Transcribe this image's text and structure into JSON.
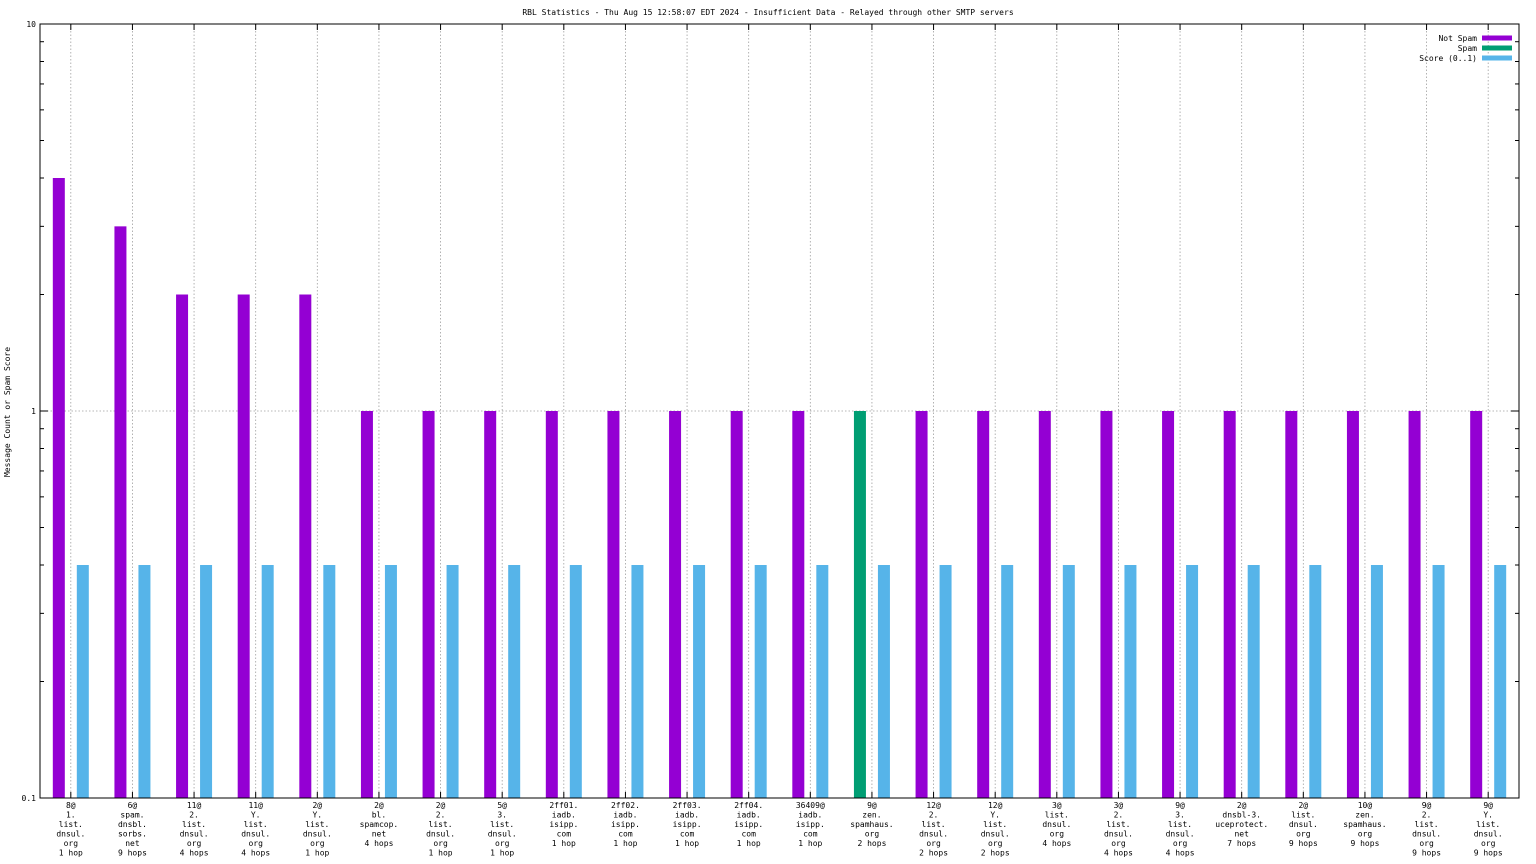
{
  "chart_data": {
    "type": "bar",
    "title": "RBL Statistics - Thu Aug 15 12:58:07 EDT 2024 - Insufficient Data - Relayed through other SMTP servers",
    "ylabel": "Message Count or Spam Score",
    "xlabel": "",
    "yscale": "log",
    "ylim": [
      0.1,
      10
    ],
    "yticks": [
      "0.1",
      "1",
      "10"
    ],
    "legend_position": "top-right",
    "grid": true,
    "colors": {
      "not_spam": "#9400d3",
      "spam": "#009e73",
      "score": "#56b4e9"
    },
    "series": [
      {
        "name": "Not Spam",
        "color": "#9400d3",
        "values": [
          4,
          3,
          2,
          2,
          2,
          1,
          1,
          1,
          1,
          1,
          1,
          1,
          1,
          null,
          1,
          1,
          1,
          1,
          1,
          1,
          1,
          1,
          1,
          1
        ]
      },
      {
        "name": "Spam",
        "color": "#009e73",
        "values": [
          null,
          null,
          null,
          null,
          null,
          null,
          null,
          null,
          null,
          null,
          null,
          null,
          null,
          1,
          null,
          null,
          null,
          null,
          null,
          null,
          null,
          null,
          null,
          null
        ]
      },
      {
        "name": "Score (0..1)",
        "color": "#56b4e9",
        "values": [
          0.4,
          0.4,
          0.4,
          0.4,
          0.4,
          0.4,
          0.4,
          0.4,
          0.4,
          0.4,
          0.4,
          0.4,
          0.4,
          0.4,
          0.4,
          0.4,
          0.4,
          0.4,
          0.4,
          0.4,
          0.4,
          0.4,
          0.4,
          0.4
        ]
      }
    ],
    "categories": [
      [
        "8@",
        "1.",
        "list.",
        "dnsul.",
        "org",
        "1 hop"
      ],
      [
        "6@",
        "spam.",
        "dnsbl.",
        "sorbs.",
        "net",
        "9 hops"
      ],
      [
        "11@",
        "2.",
        "list.",
        "dnsul.",
        "org",
        "4 hops"
      ],
      [
        "11@",
        "Y.",
        "list.",
        "dnsul.",
        "org",
        "4 hops"
      ],
      [
        "2@",
        "Y.",
        "list.",
        "dnsul.",
        "org",
        "1 hop"
      ],
      [
        "2@",
        "bl.",
        "spamcop.",
        "net",
        "4 hops"
      ],
      [
        "2@",
        "2.",
        "list.",
        "dnsul.",
        "org",
        "1 hop"
      ],
      [
        "5@",
        "3.",
        "list.",
        "dnsul.",
        "org",
        "1 hop"
      ],
      [
        "2ff01.",
        "iadb.",
        "isipp.",
        "com",
        "1 hop"
      ],
      [
        "2ff02.",
        "iadb.",
        "isipp.",
        "com",
        "1 hop"
      ],
      [
        "2ff03.",
        "iadb.",
        "isipp.",
        "com",
        "1 hop"
      ],
      [
        "2ff04.",
        "iadb.",
        "isipp.",
        "com",
        "1 hop"
      ],
      [
        "36409@",
        "iadb.",
        "isipp.",
        "com",
        "1 hop"
      ],
      [
        "9@",
        "zen.",
        "spamhaus.",
        "org",
        "2 hops"
      ],
      [
        "12@",
        "2.",
        "list.",
        "dnsul.",
        "org",
        "2 hops"
      ],
      [
        "12@",
        "Y.",
        "list.",
        "dnsul.",
        "org",
        "2 hops"
      ],
      [
        "3@",
        "list.",
        "dnsul.",
        "org",
        "4 hops"
      ],
      [
        "3@",
        "2.",
        "list.",
        "dnsul.",
        "org",
        "4 hops"
      ],
      [
        "9@",
        "3.",
        "list.",
        "dnsul.",
        "org",
        "4 hops"
      ],
      [
        "2@",
        "dnsbl-3.",
        "uceprotect.",
        "net",
        "7 hops"
      ],
      [
        "2@",
        "list.",
        "dnsul.",
        "org",
        "9 hops"
      ],
      [
        "10@",
        "zen.",
        "spamhaus.",
        "org",
        "9 hops"
      ],
      [
        "9@",
        "2.",
        "list.",
        "dnsul.",
        "org",
        "9 hops"
      ],
      [
        "9@",
        "Y.",
        "list.",
        "dnsul.",
        "org",
        "9 hops"
      ]
    ]
  }
}
